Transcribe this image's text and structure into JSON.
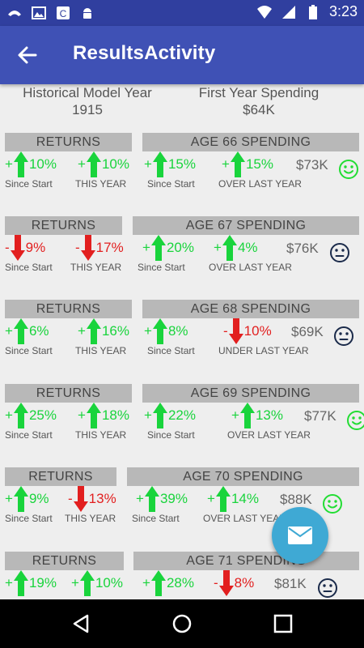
{
  "status_bar": {
    "time": "3:23"
  },
  "app_bar": {
    "title": "ResultsActivity"
  },
  "header": {
    "left": {
      "label": "Historical Model Year",
      "value": "1915"
    },
    "right": {
      "label": "First Year Spending",
      "value": "$64K"
    }
  },
  "colors": {
    "up": "#19d43c",
    "down": "#e21f1f",
    "bar": "#b8b8b8",
    "smile": "#22dd33",
    "neutral": "#1a2a4a",
    "fab": "#3fa9d4",
    "appbar": "#3f51b5",
    "statusbar": "#303f9f"
  },
  "blocks": [
    {
      "returns_label": "RETURNS",
      "age_label": "AGE 66 SPENDING",
      "stats": [
        {
          "sign": "+",
          "value": "10%",
          "dir": "up",
          "caption": "Since Start"
        },
        {
          "sign": "+",
          "value": "10%",
          "dir": "up",
          "caption": "THIS YEAR"
        },
        {
          "sign": "+",
          "value": "15%",
          "dir": "up",
          "caption": "Since Start"
        },
        {
          "sign": "+",
          "value": "15%",
          "dir": "up",
          "caption": "OVER LAST YEAR"
        }
      ],
      "spending": "$73K",
      "mood": "smile-icon"
    },
    {
      "returns_label": "RETURNS",
      "age_label": "AGE 67 SPENDING",
      "stats": [
        {
          "sign": "-",
          "value": "9%",
          "dir": "down",
          "caption": "Since Start"
        },
        {
          "sign": "-",
          "value": "17%",
          "dir": "down",
          "caption": "THIS YEAR"
        },
        {
          "sign": "+",
          "value": "20%",
          "dir": "up",
          "caption": "Since Start"
        },
        {
          "sign": "+",
          "value": "4%",
          "dir": "up",
          "caption": "OVER LAST YEAR"
        }
      ],
      "spending": "$76K",
      "mood": "neutral-face-icon"
    },
    {
      "returns_label": "RETURNS",
      "age_label": "AGE 68 SPENDING",
      "stats": [
        {
          "sign": "+",
          "value": "6%",
          "dir": "up",
          "caption": "Since Start"
        },
        {
          "sign": "+",
          "value": "16%",
          "dir": "up",
          "caption": "THIS YEAR"
        },
        {
          "sign": "+",
          "value": "8%",
          "dir": "up",
          "caption": "Since Start"
        },
        {
          "sign": "-",
          "value": "10%",
          "dir": "down",
          "caption": "UNDER LAST YEAR"
        }
      ],
      "spending": "$69K",
      "mood": "neutral-face-icon"
    },
    {
      "returns_label": "RETURNS",
      "age_label": "AGE 69 SPENDING",
      "stats": [
        {
          "sign": "+",
          "value": "25%",
          "dir": "up",
          "caption": "Since Start"
        },
        {
          "sign": "+",
          "value": "18%",
          "dir": "up",
          "caption": "THIS YEAR"
        },
        {
          "sign": "+",
          "value": "22%",
          "dir": "up",
          "caption": "Since Start"
        },
        {
          "sign": "+",
          "value": "13%",
          "dir": "up",
          "caption": "OVER LAST YEAR"
        }
      ],
      "spending": "$77K",
      "mood": "smile-icon"
    },
    {
      "returns_label": "RETURNS",
      "age_label": "AGE 70 SPENDING",
      "stats": [
        {
          "sign": "+",
          "value": "9%",
          "dir": "up",
          "caption": "Since Start"
        },
        {
          "sign": "-",
          "value": "13%",
          "dir": "down",
          "caption": "THIS YEAR"
        },
        {
          "sign": "+",
          "value": "39%",
          "dir": "up",
          "caption": "Since Start"
        },
        {
          "sign": "+",
          "value": "14%",
          "dir": "up",
          "caption": "OVER LAST YEAR"
        }
      ],
      "spending": "$88K",
      "mood": "smile-icon"
    },
    {
      "returns_label": "RETURNS",
      "age_label": "AGE 71 SPENDING",
      "stats": [
        {
          "sign": "+",
          "value": "19%",
          "dir": "up",
          "caption": ""
        },
        {
          "sign": "+",
          "value": "10%",
          "dir": "up",
          "caption": ""
        },
        {
          "sign": "+",
          "value": "28%",
          "dir": "up",
          "caption": ""
        },
        {
          "sign": "-",
          "value": "8%",
          "dir": "down",
          "caption": ""
        }
      ],
      "spending": "$81K",
      "mood": "neutral-face-icon"
    }
  ]
}
